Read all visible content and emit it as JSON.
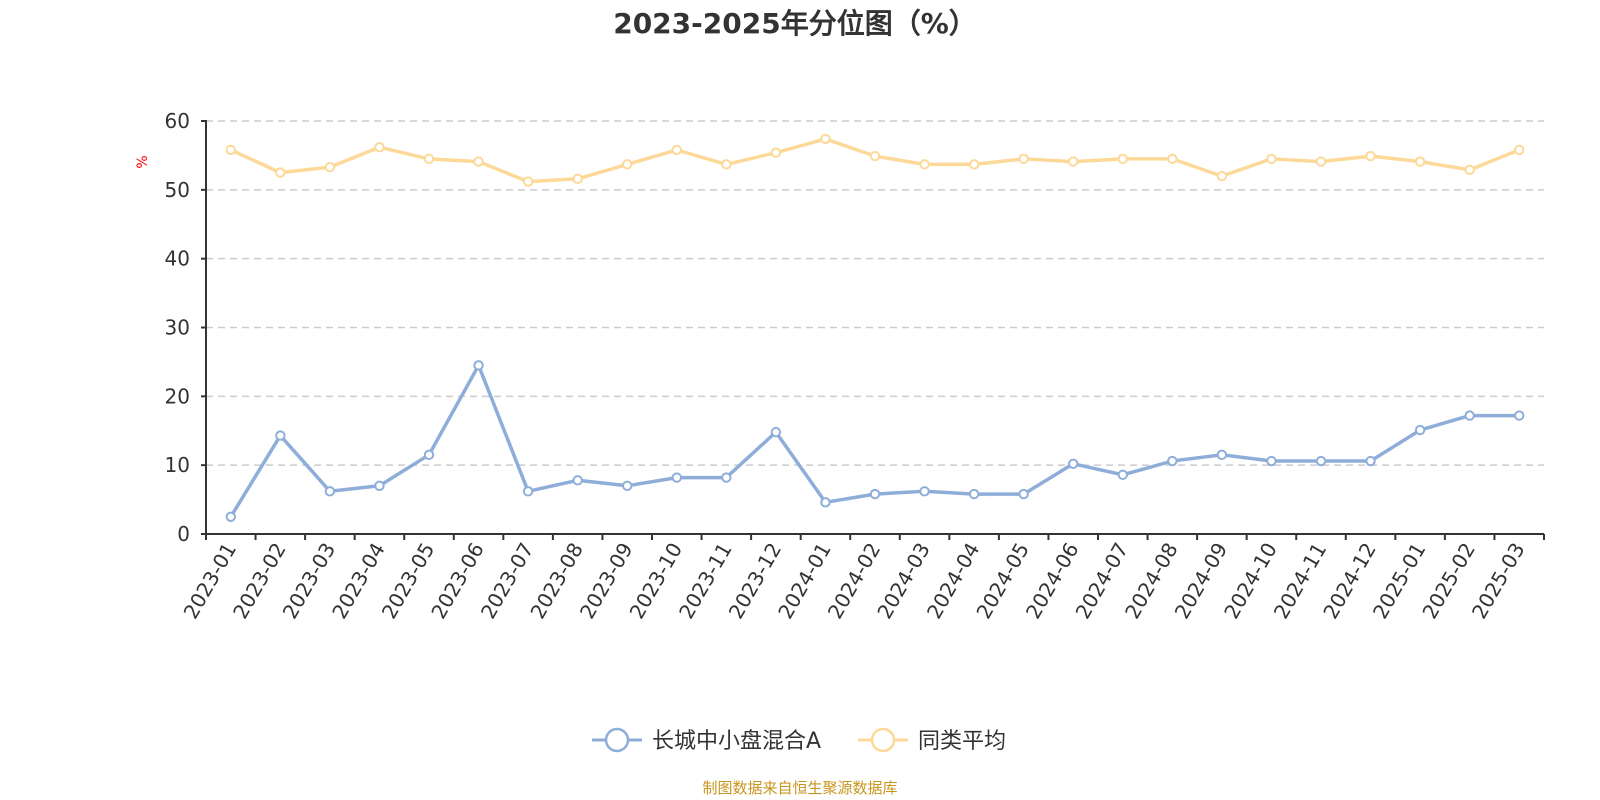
{
  "chart_data": {
    "type": "line",
    "title": "2023-2025年分位图（%）",
    "ylabel": "%",
    "xlabel": "",
    "ylim": [
      0,
      60
    ],
    "yticks": [
      0,
      10,
      20,
      30,
      40,
      50,
      60
    ],
    "grid": true,
    "legend_position": "bottom",
    "x": [
      "2023-01",
      "2023-02",
      "2023-03",
      "2023-04",
      "2023-05",
      "2023-06",
      "2023-07",
      "2023-08",
      "2023-09",
      "2023-10",
      "2023-11",
      "2023-12",
      "2024-01",
      "2024-02",
      "2024-03",
      "2024-04",
      "2024-05",
      "2024-06",
      "2024-07",
      "2024-08",
      "2024-09",
      "2024-10",
      "2024-11",
      "2024-12",
      "2025-01",
      "2025-02",
      "2025-03"
    ],
    "series": [
      {
        "name": "长城中小盘混合A",
        "color": "#8eaed9",
        "values": [
          2.5,
          14.3,
          6.2,
          7.0,
          11.5,
          24.5,
          6.2,
          7.8,
          7.0,
          8.2,
          8.2,
          14.8,
          4.6,
          5.8,
          6.2,
          5.8,
          5.8,
          10.2,
          8.6,
          10.6,
          11.5,
          10.6,
          10.6,
          10.6,
          15.1,
          17.2,
          17.2
        ]
      },
      {
        "name": "同类平均",
        "color": "#fdd999",
        "values": [
          55.8,
          52.5,
          53.3,
          56.2,
          54.5,
          54.1,
          51.2,
          51.6,
          53.7,
          55.8,
          53.7,
          55.4,
          57.4,
          54.9,
          53.7,
          53.7,
          54.5,
          54.1,
          54.5,
          54.5,
          52.0,
          54.5,
          54.1,
          54.9,
          54.1,
          52.9,
          55.8
        ]
      }
    ],
    "source": "制图数据来自恒生聚源数据库"
  }
}
